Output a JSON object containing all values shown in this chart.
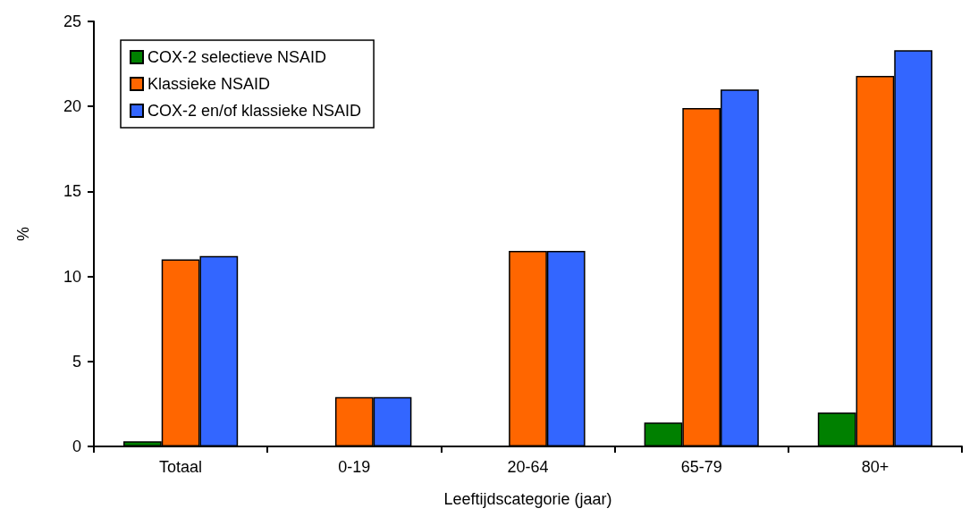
{
  "chart_data": {
    "type": "bar",
    "xlabel": "Leeftijdscategorie (jaar)",
    "ylabel": "%",
    "categories": [
      "Totaal",
      "0-19",
      "20-64",
      "65-79",
      "80+"
    ],
    "series": [
      {
        "name": "COX-2 selectieve NSAID",
        "color": "#008000",
        "values": [
          0.3,
          null,
          null,
          1.4,
          2.0
        ]
      },
      {
        "name": "Klassieke NSAID",
        "color": "#ff6600",
        "values": [
          11.0,
          2.9,
          11.5,
          19.9,
          21.8
        ]
      },
      {
        "name": "COX-2 en/of klassieke NSAID",
        "color": "#3366ff",
        "values": [
          11.2,
          2.9,
          11.5,
          21.0,
          23.3
        ]
      }
    ],
    "ylim": [
      0,
      25
    ],
    "yticks": [
      0,
      5,
      10,
      15,
      20,
      25
    ],
    "grid": false,
    "legend": "top left"
  }
}
